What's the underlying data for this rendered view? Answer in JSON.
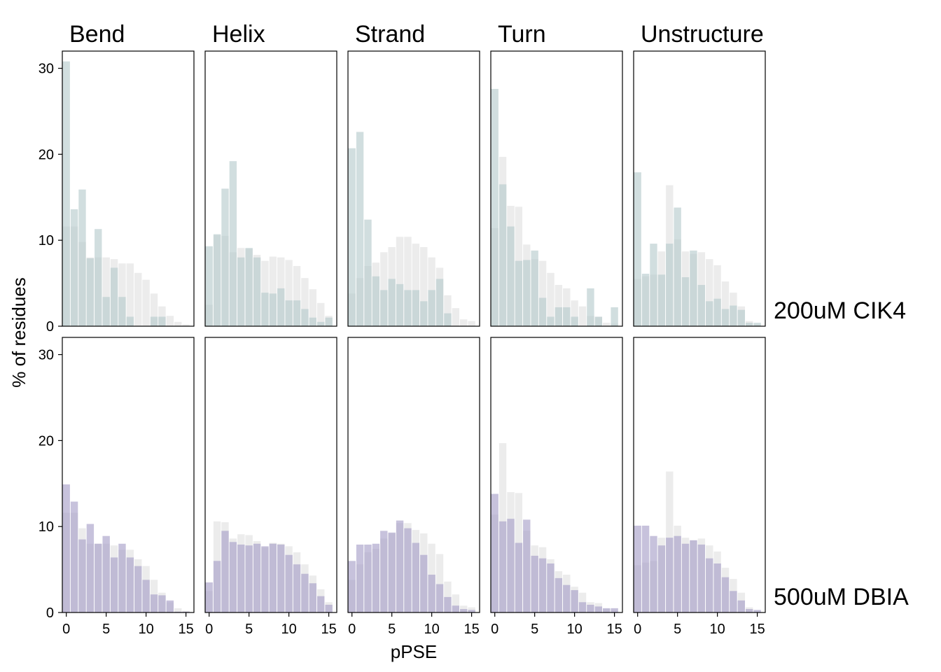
{
  "chart_data": {
    "type": "bar",
    "xlabel": "pPSE",
    "ylabel": "% of residues",
    "columns": [
      "Bend",
      "Helix",
      "Strand",
      "Turn",
      "Unstructure"
    ],
    "rows": [
      "200uM CIK4",
      "500uM DBIA"
    ],
    "x": [
      0,
      1,
      2,
      3,
      4,
      5,
      6,
      7,
      8,
      9,
      10,
      11,
      12,
      13,
      14,
      15
    ],
    "xticks": [
      0,
      5,
      10,
      15
    ],
    "xlim": [
      -0.5,
      16
    ],
    "ylim": [
      0,
      32
    ],
    "yticks": [
      0,
      10,
      20,
      30
    ],
    "colors": {
      "background_series": "#e0e0e0",
      "row_1_series": "#b4cacb",
      "row_2_series": "#a49cc6"
    },
    "panels": [
      {
        "row": "200uM CIK4",
        "column": "Bend",
        "background": [
          11.6,
          11.6,
          9.8,
          8.0,
          8.0,
          8.0,
          7.8,
          7.3,
          7.3,
          6.2,
          5.4,
          3.8,
          2.3,
          1.2,
          0.5,
          0.2
        ],
        "foreground": [
          30.8,
          13.6,
          15.9,
          7.9,
          11.3,
          3.4,
          6.8,
          3.4,
          1.1,
          0,
          0,
          1.1,
          1.1,
          0,
          0,
          0
        ]
      },
      {
        "row": "200uM CIK4",
        "column": "Helix",
        "background": [
          2.5,
          10.6,
          10.5,
          8.6,
          9.1,
          9.0,
          8.3,
          7.6,
          8.1,
          8.0,
          7.7,
          7.0,
          5.6,
          4.3,
          2.7,
          1.2
        ],
        "foreground": [
          9.3,
          10.7,
          16.0,
          19.2,
          8.0,
          9.1,
          8.0,
          3.9,
          3.8,
          4.4,
          3.0,
          3.0,
          2.0,
          1.0,
          0.5,
          1.0
        ]
      },
      {
        "row": "200uM CIK4",
        "column": "Strand",
        "background": [
          3.8,
          5.6,
          7.0,
          7.4,
          8.6,
          9.2,
          10.4,
          10.4,
          9.6,
          9.2,
          8.0,
          6.8,
          3.6,
          2.1,
          0.8,
          0.6
        ],
        "foreground": [
          20.7,
          22.6,
          12.4,
          5.8,
          4.2,
          5.5,
          4.9,
          4.2,
          4.2,
          2.9,
          4.2,
          5.5,
          1.5,
          0,
          0,
          0
        ]
      },
      {
        "row": "200uM CIK4",
        "column": "Turn",
        "background": [
          11.4,
          19.7,
          14.0,
          13.9,
          9.5,
          7.8,
          7.6,
          6.2,
          4.8,
          4.4,
          3.0,
          2.3,
          1.2,
          1.1,
          0.4,
          0.3
        ],
        "foreground": [
          27.6,
          16.5,
          11.6,
          7.6,
          7.7,
          8.8,
          3.3,
          1.1,
          2.2,
          2.2,
          1.1,
          0,
          4.4,
          1.1,
          0,
          2.2
        ]
      },
      {
        "row": "200uM CIK4",
        "column": "Unstructure",
        "background": [
          5.5,
          5.8,
          6.0,
          8.7,
          16.4,
          10.1,
          8.7,
          8.4,
          8.6,
          7.8,
          7.1,
          5.2,
          3.9,
          2.3,
          0.6,
          0.2
        ],
        "foreground": [
          17.9,
          6.1,
          9.6,
          6.0,
          9.6,
          13.8,
          5.7,
          8.8,
          4.8,
          2.9,
          3.2,
          2.0,
          2.4,
          1.9,
          0.4,
          0.4
        ]
      },
      {
        "row": "500uM DBIA",
        "column": "Bend",
        "background": [
          11.6,
          11.6,
          9.8,
          8.0,
          8.0,
          8.0,
          7.8,
          7.3,
          7.3,
          6.2,
          5.4,
          3.8,
          2.3,
          1.2,
          0.5,
          0.2
        ],
        "foreground": [
          14.9,
          12.9,
          8.5,
          10.3,
          8.0,
          8.9,
          6.4,
          8.0,
          6.4,
          5.4,
          3.8,
          2.1,
          2.0,
          1.4,
          0.1,
          0.1
        ]
      },
      {
        "row": "500uM DBIA",
        "column": "Helix",
        "background": [
          2.5,
          10.6,
          10.5,
          8.6,
          9.1,
          9.0,
          8.3,
          7.6,
          8.1,
          8.0,
          7.7,
          7.0,
          5.6,
          4.3,
          2.7,
          1.2
        ],
        "foreground": [
          3.5,
          6.0,
          9.5,
          8.2,
          7.9,
          7.8,
          8.0,
          7.7,
          8.0,
          7.9,
          6.7,
          5.6,
          4.5,
          3.4,
          1.9,
          0.9
        ]
      },
      {
        "row": "500uM DBIA",
        "column": "Strand",
        "background": [
          3.8,
          5.6,
          7.0,
          7.4,
          8.6,
          9.2,
          10.4,
          10.4,
          9.6,
          9.2,
          8.0,
          6.8,
          3.6,
          2.1,
          0.8,
          0.6
        ],
        "foreground": [
          6.0,
          7.9,
          7.9,
          8.0,
          9.5,
          9.3,
          10.7,
          9.8,
          8.1,
          6.7,
          4.4,
          3.3,
          1.8,
          0.8,
          0.4,
          0.3
        ]
      },
      {
        "row": "500uM DBIA",
        "column": "Turn",
        "background": [
          11.4,
          19.7,
          14.0,
          13.9,
          9.5,
          7.8,
          7.6,
          6.2,
          4.8,
          4.4,
          3.0,
          2.3,
          1.2,
          1.1,
          0.4,
          0.3
        ],
        "foreground": [
          13.8,
          10.6,
          10.9,
          8.1,
          10.8,
          6.6,
          6.3,
          5.7,
          4.0,
          3.2,
          2.6,
          1.2,
          0.9,
          0.7,
          0.5,
          0.5
        ]
      },
      {
        "row": "500uM DBIA",
        "column": "Unstructure",
        "background": [
          5.5,
          5.8,
          6.0,
          8.7,
          16.4,
          10.1,
          8.7,
          8.4,
          8.6,
          7.8,
          7.1,
          5.2,
          3.9,
          2.3,
          0.6,
          0.2
        ],
        "foreground": [
          10.1,
          10.1,
          8.9,
          7.8,
          8.7,
          8.9,
          8.0,
          8.4,
          7.9,
          6.3,
          5.7,
          4.1,
          2.5,
          1.4,
          0.4,
          0.3
        ]
      }
    ]
  }
}
